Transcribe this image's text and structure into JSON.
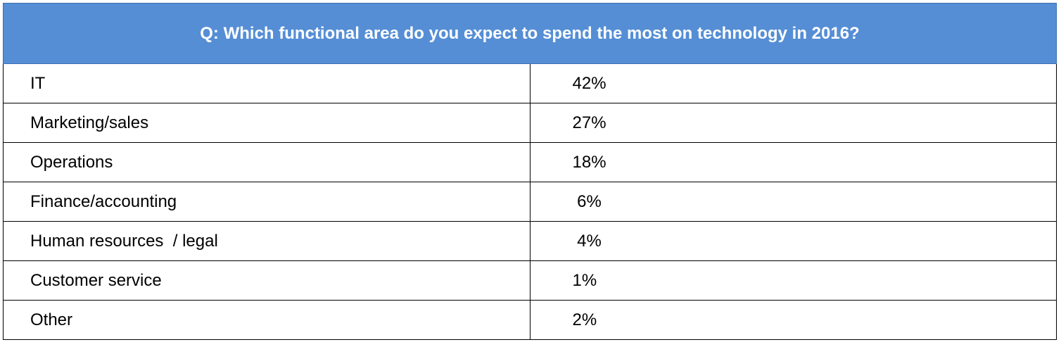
{
  "chart_data": {
    "type": "table",
    "title": "Q: Which functional area do you expect to spend the most on technology in 2016?",
    "rows": [
      {
        "category": "IT",
        "value": "42%"
      },
      {
        "category": "Marketing/sales",
        "value": "27%"
      },
      {
        "category": "Operations",
        "value": "18%"
      },
      {
        "category": "Finance/accounting",
        "value": " 6%"
      },
      {
        "category": "Human resources  / legal",
        "value": " 4%"
      },
      {
        "category": "Customer service",
        "value": "1%"
      },
      {
        "category": "Other",
        "value": "2%"
      }
    ],
    "colors": {
      "header_bg": "#558ed5",
      "header_text": "#ffffff"
    }
  }
}
